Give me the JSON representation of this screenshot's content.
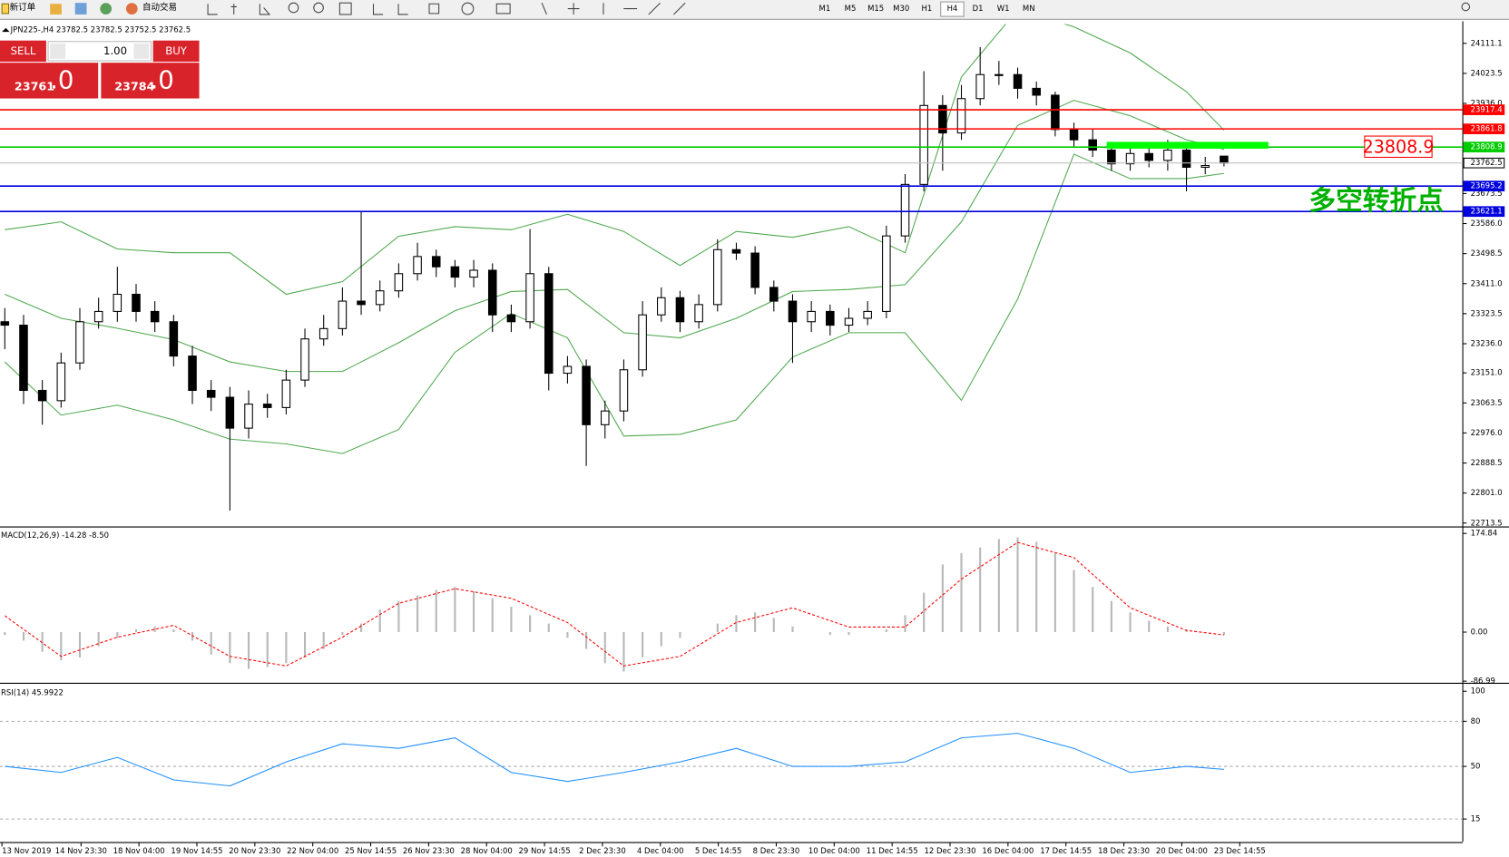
{
  "toolbar": {
    "new_order": "新订单",
    "auto_trading": "自动交易",
    "timeframes": [
      "M1",
      "M5",
      "M15",
      "M30",
      "H1",
      "H4",
      "D1",
      "W1",
      "MN"
    ]
  },
  "trade_panel": {
    "sell": "SELL",
    "buy": "BUY",
    "volume": "1.00",
    "bid_main": "23761",
    "bid_frac": ".0",
    "ask_main": "23784",
    "ask_frac": ".0"
  },
  "chart_data": {
    "type": "candlestick",
    "title": "JPN225-,H4 23782.5 23782.5 23752.5 23762.5",
    "ylim": [
      22705,
      24167
    ],
    "yticks": [
      24111.1,
      24023.5,
      {
        "value": 23936,
        "label": "23936.0"
      },
      23673.5,
      {
        "value": 23586,
        "label": "23586.0"
      },
      23498.5,
      {
        "value": 23411,
        "label": "23411.0"
      },
      23323.5,
      {
        "value": 23236,
        "label": "23236.0"
      },
      {
        "value": 23151,
        "label": "23151.0"
      },
      23063.5,
      {
        "value": 22976,
        "label": "22976.0"
      },
      22888.5,
      {
        "value": 22801,
        "label": "22801.0"
      },
      22713.5
    ],
    "candles": {
      "open": [
        23300,
        23290,
        23100,
        23070,
        23180,
        23300,
        23330,
        23380,
        23330,
        23300,
        23200,
        23100,
        23080,
        22990,
        23060,
        23050,
        23130,
        23250,
        23280,
        23360,
        23350,
        23390,
        23440,
        23490,
        23460,
        23430,
        23450,
        23320,
        23300,
        23440,
        23150,
        23170,
        23000,
        23040,
        23160,
        23320,
        23370,
        23300,
        23350,
        23510,
        23500,
        23400,
        23360,
        23300,
        23330,
        23290,
        23310,
        23330,
        23550,
        23700,
        23930,
        23850,
        23950,
        24020,
        24020,
        23980,
        23960,
        23860,
        23830,
        23800,
        23760,
        23790,
        23770,
        23800,
        23750,
        23782.5
      ],
      "high": [
        23340,
        23320,
        23130,
        23210,
        23340,
        23370,
        23460,
        23410,
        23360,
        23320,
        23230,
        23130,
        23110,
        23100,
        23090,
        23160,
        23280,
        23320,
        23400,
        23620,
        23420,
        23470,
        23530,
        23510,
        23480,
        23480,
        23470,
        23350,
        23570,
        23460,
        23200,
        23190,
        23070,
        23190,
        23360,
        23400,
        23390,
        23380,
        23540,
        23530,
        23520,
        23420,
        23380,
        23360,
        23350,
        23340,
        23360,
        23580,
        23730,
        24030,
        23960,
        23990,
        24100,
        24060,
        24040,
        24000,
        23970,
        23880,
        23860,
        23820,
        23820,
        23810,
        23830,
        23810,
        23780,
        23782.5
      ],
      "low": [
        23220,
        23060,
        23000,
        23050,
        23160,
        23280,
        23300,
        23300,
        23270,
        23170,
        23060,
        23040,
        22750,
        22960,
        23020,
        23030,
        23110,
        23230,
        23260,
        23320,
        23330,
        23370,
        23420,
        23430,
        23400,
        23400,
        23270,
        23270,
        23280,
        23100,
        23120,
        22880,
        22960,
        23010,
        23140,
        23300,
        23270,
        23280,
        23330,
        23480,
        23380,
        23330,
        23180,
        23270,
        23260,
        23270,
        23290,
        23310,
        23530,
        23680,
        23740,
        23830,
        23930,
        23990,
        23950,
        23930,
        23840,
        23810,
        23780,
        23740,
        23740,
        23750,
        23740,
        23680,
        23730,
        23752.5
      ],
      "close": [
        23290,
        23100,
        23070,
        23180,
        23300,
        23330,
        23380,
        23330,
        23300,
        23200,
        23100,
        23080,
        22990,
        23060,
        23050,
        23130,
        23250,
        23280,
        23360,
        23350,
        23390,
        23440,
        23490,
        23460,
        23430,
        23450,
        23320,
        23300,
        23440,
        23150,
        23170,
        23000,
        23040,
        23160,
        23320,
        23370,
        23300,
        23350,
        23510,
        23500,
        23400,
        23360,
        23300,
        23330,
        23290,
        23310,
        23330,
        23550,
        23700,
        23930,
        23850,
        23950,
        24020,
        24020,
        23980,
        23960,
        23860,
        23830,
        23800,
        23760,
        23790,
        23770,
        23800,
        23750,
        23755,
        23762.5
      ]
    },
    "bands": {
      "color": "#4fa84f",
      "x": [
        0,
        3,
        6,
        9,
        12,
        15,
        18,
        21,
        24,
        27,
        30,
        33,
        36,
        39,
        42,
        45,
        48,
        51,
        54,
        57,
        60,
        63,
        65
      ],
      "upper": [
        23568,
        23591,
        23512,
        23501,
        23501,
        23380,
        23417,
        23549,
        23577,
        23568,
        23613,
        23563,
        23464,
        23563,
        23546,
        23577,
        23501,
        24013,
        24209,
        24159,
        24083,
        23970,
        23858
      ],
      "middle": [
        23380,
        23310,
        23281,
        23248,
        23183,
        23155,
        23155,
        23239,
        23332,
        23388,
        23394,
        23268,
        23253,
        23310,
        23388,
        23394,
        23408,
        23591,
        23872,
        23945,
        23900,
        23830,
        23802
      ],
      "lower": [
        23183,
        23028,
        23057,
        23014,
        22958,
        22944,
        22916,
        22986,
        23211,
        23324,
        23253,
        22967,
        22972,
        23014,
        23197,
        23268,
        23268,
        23071,
        23366,
        23788,
        23717,
        23717,
        23732
      ]
    },
    "levels": [
      {
        "value": 23917.4,
        "color": "#ff0000"
      },
      {
        "value": 23861.8,
        "color": "#ff0000"
      },
      {
        "value": 23808.9,
        "color": "#00cc00"
      },
      {
        "value": 23762.5,
        "color": "#c0c0c0"
      },
      {
        "value": 23695.2,
        "color": "#0000dd"
      },
      {
        "value": 23621.1,
        "color": "#0000dd"
      }
    ],
    "annotation_price": "23808.9",
    "annotation_note": "多空转折点",
    "x_labels": [
      "13 Nov 2019",
      "14 Nov 23:30",
      "18 Nov 04:00",
      "19 Nov 14:55",
      "20 Nov 23:30",
      "22 Nov 04:00",
      "25 Nov 14:55",
      "26 Nov 23:30",
      "28 Nov 04:00",
      "29 Nov 14:55",
      "2 Dec 23:30",
      "4 Dec 04:00",
      "5 Dec 14:55",
      "8 Dec 23:30",
      "10 Dec 04:00",
      "11 Dec 14:55",
      "12 Dec 23:30",
      "16 Dec 04:00",
      "17 Dec 14:55",
      "18 Dec 23:30",
      "20 Dec 04:00",
      "23 Dec 14:55"
    ],
    "macd": {
      "label": "MACD(12,26,9) -14.28 -8.50",
      "ylim": [
        -89,
        183
      ],
      "yticks": [
        174.84,
        {
          "value": 0,
          "label": "0.00"
        },
        -86.99
      ],
      "histogram": [
        -5,
        -15,
        -35,
        -50,
        -45,
        -25,
        -10,
        5,
        10,
        5,
        -15,
        -40,
        -55,
        -65,
        -62,
        -55,
        -45,
        -30,
        -5,
        15,
        40,
        55,
        65,
        75,
        80,
        72,
        60,
        45,
        30,
        15,
        -10,
        -30,
        -55,
        -70,
        -45,
        -25,
        -10,
        0,
        15,
        30,
        35,
        25,
        10,
        0,
        -5,
        -5,
        0,
        5,
        30,
        70,
        120,
        140,
        150,
        165,
        168,
        160,
        140,
        110,
        80,
        55,
        35,
        20,
        10,
        5,
        0,
        -5
      ],
      "signal_color": "#ff0000",
      "signal": [
        29,
        -43,
        -9,
        12,
        -43,
        -60,
        -9,
        51,
        77,
        60,
        17,
        -60,
        -43,
        17,
        43,
        9,
        9,
        94,
        159,
        132,
        43,
        3,
        -5
      ]
    },
    "rsi": {
      "label": "RSI(14) 45.9922",
      "ylim": [
        0,
        104
      ],
      "yticks": [
        100,
        80,
        50,
        15
      ],
      "color": "#1e90ff",
      "values": [
        50,
        46,
        56,
        41,
        37,
        53,
        65,
        62,
        69,
        46,
        40,
        46,
        53,
        62,
        50,
        50,
        53,
        69,
        72,
        62,
        46,
        50,
        48
      ]
    }
  }
}
